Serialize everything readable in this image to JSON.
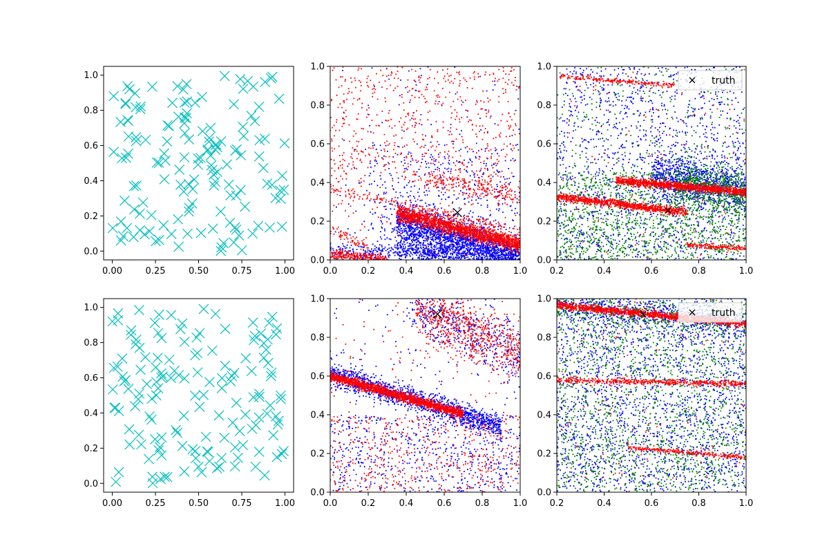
{
  "chart_data": [
    {
      "type": "scatter",
      "row": 0,
      "col": 0,
      "xlim": [
        -0.05,
        1.05
      ],
      "ylim": [
        -0.05,
        1.05
      ],
      "xticks": [
        "0.00",
        "0.25",
        "0.50",
        "0.75",
        "1.00"
      ],
      "yticks": [
        "0.0",
        "0.2",
        "0.4",
        "0.6",
        "0.8",
        "1.0"
      ],
      "grid": false,
      "series": [
        {
          "color": "#00bfbf",
          "marker": "x-large",
          "count": 150,
          "distribution": "uniform",
          "seed": 11
        }
      ]
    },
    {
      "type": "scatter",
      "row": 0,
      "col": 1,
      "xlim": [
        0.0,
        1.0
      ],
      "ylim": [
        0.0,
        1.0
      ],
      "xticks": [
        "0.0",
        "0.2",
        "0.4",
        "0.6",
        "0.8",
        "1.0"
      ],
      "yticks": [
        "0.0",
        "0.2",
        "0.4",
        "0.6",
        "0.8",
        "1.0"
      ],
      "grid": false,
      "series": [
        {
          "color": "#0000ff",
          "marker": "dot",
          "seed": 21,
          "components": [
            {
              "kind": "band",
              "x": [
                0.35,
                1.0
              ],
              "y0": 0.31,
              "slope": -0.3,
              "spread": 0.045,
              "count": 1700
            },
            {
              "kind": "band",
              "x": [
                0.35,
                1.0
              ],
              "y0": 0.16,
              "slope": -0.25,
              "spread": 0.045,
              "count": 750
            },
            {
              "kind": "band",
              "x": [
                0.0,
                1.0
              ],
              "y0": 0.04,
              "slope": -0.02,
              "spread": 0.03,
              "count": 450
            },
            {
              "kind": "cloud",
              "x": [
                0.2,
                1.0
              ],
              "y": [
                0.0,
                0.6
              ],
              "count": 500
            },
            {
              "kind": "cloud",
              "x": [
                0.0,
                1.0
              ],
              "y": [
                0.0,
                1.0
              ],
              "count": 150
            }
          ]
        },
        {
          "color": "#ff0000",
          "marker": "dot",
          "seed": 22,
          "components": [
            {
              "kind": "band",
              "x": [
                0.0,
                1.0
              ],
              "y0": 0.37,
              "slope": -0.22,
              "spread": 0.012,
              "count": 180
            },
            {
              "kind": "band",
              "x": [
                0.35,
                1.0
              ],
              "y0": 0.33,
              "slope": -0.25,
              "spread": 0.02,
              "count": 1700
            },
            {
              "kind": "band",
              "x": [
                0.0,
                0.3
              ],
              "y0": 0.03,
              "slope": -0.1,
              "spread": 0.012,
              "count": 250
            },
            {
              "kind": "band",
              "x": [
                0.0,
                0.2
              ],
              "y0": 0.16,
              "slope": -0.5,
              "spread": 0.015,
              "count": 60
            },
            {
              "kind": "band",
              "x": [
                0.5,
                1.0
              ],
              "y0": 0.52,
              "slope": -0.2,
              "spread": 0.025,
              "count": 220
            },
            {
              "kind": "cloud",
              "x": [
                0.0,
                1.0
              ],
              "y": [
                0.4,
                1.0
              ],
              "count": 600
            },
            {
              "kind": "cloud",
              "x": [
                0.0,
                1.0
              ],
              "y": [
                0.0,
                0.6
              ],
              "count": 150
            }
          ]
        },
        {
          "color": "#000000",
          "marker": "x-truth",
          "x": [
            0.67
          ],
          "y": [
            0.245
          ]
        }
      ]
    },
    {
      "type": "scatter",
      "row": 0,
      "col": 2,
      "xlim": [
        0.2,
        1.0
      ],
      "ylim": [
        0.0,
        1.0
      ],
      "xticks": [
        "0.2",
        "0.4",
        "0.6",
        "0.8",
        "1.0"
      ],
      "yticks": [
        "0.0",
        "0.2",
        "0.4",
        "0.6",
        "0.8",
        "1.0"
      ],
      "grid": false,
      "legend": {
        "position": "top-right",
        "entries": [
          "truth"
        ]
      },
      "series": [
        {
          "color": "#0000ff",
          "marker": "dot",
          "seed": 31,
          "components": [
            {
              "kind": "band",
              "x": [
                0.6,
                1.0
              ],
              "y0": 0.56,
              "slope": -0.2,
              "spread": 0.06,
              "count": 900
            },
            {
              "kind": "cloud",
              "x": [
                0.2,
                1.0
              ],
              "y": [
                0.0,
                1.0
              ],
              "count": 1400
            }
          ]
        },
        {
          "color": "#008000",
          "marker": "dot",
          "seed": 32,
          "components": [
            {
              "kind": "cloud",
              "x": [
                0.2,
                1.0
              ],
              "y": [
                0.0,
                0.45
              ],
              "count": 1400
            },
            {
              "kind": "band",
              "x": [
                0.7,
                1.0
              ],
              "y0": 0.56,
              "slope": -0.22,
              "spread": 0.06,
              "count": 500
            },
            {
              "kind": "cloud",
              "x": [
                0.2,
                1.0
              ],
              "y": [
                0.4,
                1.0
              ],
              "count": 300
            }
          ]
        },
        {
          "color": "#ff0000",
          "marker": "dot",
          "seed": 33,
          "components": [
            {
              "kind": "band",
              "x": [
                0.45,
                1.0
              ],
              "y0": 0.46,
              "slope": -0.11,
              "spread": 0.01,
              "count": 1100
            },
            {
              "kind": "band",
              "x": [
                0.2,
                0.75
              ],
              "y0": 0.355,
              "slope": -0.145,
              "spread": 0.01,
              "count": 900
            },
            {
              "kind": "band",
              "x": [
                0.2,
                0.7
              ],
              "y0": 0.97,
              "slope": -0.1,
              "spread": 0.006,
              "count": 200
            },
            {
              "kind": "band",
              "x": [
                0.75,
                1.0
              ],
              "y0": 0.13,
              "slope": -0.07,
              "spread": 0.006,
              "count": 150
            },
            {
              "kind": "cloud",
              "x": [
                0.2,
                1.0
              ],
              "y": [
                0.0,
                1.0
              ],
              "count": 120
            }
          ]
        },
        {
          "color": "#000000",
          "marker": "x-truth-small",
          "x": [
            0.67
          ],
          "y": [
            0.255
          ]
        }
      ]
    },
    {
      "type": "scatter",
      "row": 1,
      "col": 0,
      "xlim": [
        -0.05,
        1.05
      ],
      "ylim": [
        -0.05,
        1.05
      ],
      "xticks": [
        "0.00",
        "0.25",
        "0.50",
        "0.75",
        "1.00"
      ],
      "yticks": [
        "0.0",
        "0.2",
        "0.4",
        "0.6",
        "0.8",
        "1.0"
      ],
      "grid": false,
      "series": [
        {
          "color": "#00bfbf",
          "marker": "x-large",
          "count": 150,
          "distribution": "uniform",
          "seed": 41
        }
      ]
    },
    {
      "type": "scatter",
      "row": 1,
      "col": 1,
      "xlim": [
        0.0,
        1.0
      ],
      "ylim": [
        0.0,
        1.0
      ],
      "xticks": [
        "0.0",
        "0.2",
        "0.4",
        "0.6",
        "0.8",
        "1.0"
      ],
      "yticks": [
        "0.0",
        "0.2",
        "0.4",
        "0.6",
        "0.8",
        "1.0"
      ],
      "grid": false,
      "series": [
        {
          "color": "#0000ff",
          "marker": "dot",
          "seed": 51,
          "components": [
            {
              "kind": "band",
              "x": [
                0.0,
                0.9
              ],
              "y0": 0.61,
              "slope": -0.3,
              "spread": 0.03,
              "count": 1400
            },
            {
              "kind": "band",
              "x": [
                0.4,
                1.0
              ],
              "y0": 1.16,
              "slope": -0.45,
              "spread": 0.08,
              "count": 450
            },
            {
              "kind": "cloud",
              "x": [
                0.0,
                1.0
              ],
              "y": [
                0.0,
                0.4
              ],
              "count": 500
            },
            {
              "kind": "cloud",
              "x": [
                0.0,
                1.0
              ],
              "y": [
                0.0,
                1.0
              ],
              "count": 200
            }
          ]
        },
        {
          "color": "#ff0000",
          "marker": "dot",
          "seed": 52,
          "components": [
            {
              "kind": "band",
              "x": [
                0.0,
                0.7
              ],
              "y0": 0.6,
              "slope": -0.28,
              "spread": 0.012,
              "count": 1600
            },
            {
              "kind": "band",
              "x": [
                0.45,
                1.0
              ],
              "y0": 1.16,
              "slope": -0.45,
              "spread": 0.08,
              "count": 700
            },
            {
              "kind": "cloud",
              "x": [
                0.0,
                1.0
              ],
              "y": [
                0.0,
                0.4
              ],
              "count": 450
            },
            {
              "kind": "cloud",
              "x": [
                0.0,
                1.0
              ],
              "y": [
                0.0,
                1.0
              ],
              "count": 150
            }
          ]
        },
        {
          "color": "#000000",
          "marker": "x-truth",
          "x": [
            0.565
          ],
          "y": [
            0.92
          ]
        }
      ]
    },
    {
      "type": "scatter",
      "row": 1,
      "col": 2,
      "xlim": [
        0.2,
        1.0
      ],
      "ylim": [
        0.0,
        1.0
      ],
      "xticks": [
        "0.2",
        "0.4",
        "0.6",
        "0.8",
        "1.0"
      ],
      "yticks": [
        "0.0",
        "0.2",
        "0.4",
        "0.6",
        "0.8",
        "1.0"
      ],
      "grid": false,
      "legend": {
        "position": "top-right",
        "entries": [
          "truth"
        ]
      },
      "series": [
        {
          "color": "#0000ff",
          "marker": "dot",
          "seed": 61,
          "components": [
            {
              "kind": "cloud",
              "x": [
                0.2,
                1.0
              ],
              "y": [
                0.0,
                1.0
              ],
              "count": 2000
            },
            {
              "kind": "band",
              "x": [
                0.2,
                1.0
              ],
              "y0": 0.99,
              "slope": -0.12,
              "spread": 0.035,
              "count": 500
            }
          ]
        },
        {
          "color": "#008000",
          "marker": "dot",
          "seed": 62,
          "components": [
            {
              "kind": "cloud",
              "x": [
                0.2,
                1.0
              ],
              "y": [
                0.0,
                1.0
              ],
              "count": 1800
            },
            {
              "kind": "band",
              "x": [
                0.2,
                1.0
              ],
              "y0": 0.99,
              "slope": -0.12,
              "spread": 0.035,
              "count": 300
            }
          ]
        },
        {
          "color": "#ff0000",
          "marker": "dot",
          "seed": 63,
          "components": [
            {
              "kind": "band",
              "x": [
                0.2,
                1.0
              ],
              "y0": 0.99,
              "slope": -0.12,
              "spread": 0.01,
              "count": 1200
            },
            {
              "kind": "band",
              "x": [
                0.2,
                1.0
              ],
              "y0": 0.585,
              "slope": -0.025,
              "spread": 0.008,
              "count": 500
            },
            {
              "kind": "band",
              "x": [
                0.5,
                1.0
              ],
              "y0": 0.28,
              "slope": -0.1,
              "spread": 0.006,
              "count": 250
            },
            {
              "kind": "cloud",
              "x": [
                0.2,
                1.0
              ],
              "y": [
                0.0,
                1.0
              ],
              "count": 100
            }
          ]
        },
        {
          "color": "#000000",
          "marker": "x-truth-small",
          "x": [
            0.565
          ],
          "y": [
            0.92
          ]
        }
      ]
    }
  ]
}
